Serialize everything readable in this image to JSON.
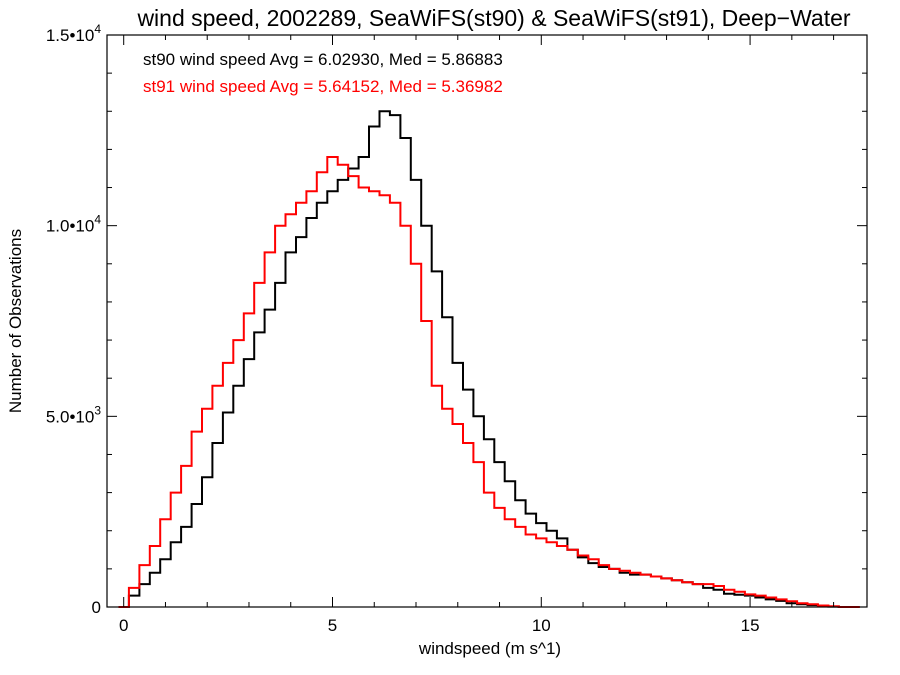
{
  "chart_data": {
    "type": "line",
    "title": "wind speed, 2002289, SeaWiFS(st90) & SeaWiFS(st91), Deep−Water",
    "xlabel": "windspeed (m s^1)",
    "ylabel": "Number of Observations",
    "xlim": [
      -0.4,
      17.8
    ],
    "ylim": [
      0,
      15000
    ],
    "x_ticks": [
      {
        "value": 0,
        "label": "0"
      },
      {
        "value": 5,
        "label": "5"
      },
      {
        "value": 10,
        "label": "10"
      },
      {
        "value": 15,
        "label": "15"
      }
    ],
    "y_ticks": [
      {
        "value": 0,
        "base": "0",
        "exp": ""
      },
      {
        "value": 5000,
        "base": "5.0•10",
        "exp": "3"
      },
      {
        "value": 10000,
        "base": "1.0•10",
        "exp": "4"
      },
      {
        "value": 15000,
        "base": "1.5•10",
        "exp": "4"
      }
    ],
    "grid": false,
    "style": "step",
    "annotations": [
      {
        "text": "st90 wind speed Avg = 6.02930, Med = 5.86883",
        "color": "#000000"
      },
      {
        "text": "st91 wind speed Avg = 5.64152, Med = 5.36982",
        "color": "#ff0000"
      }
    ],
    "series": [
      {
        "color": "#000000",
        "x": [
          0,
          0.25,
          0.5,
          0.75,
          1,
          1.25,
          1.5,
          1.75,
          2,
          2.25,
          2.5,
          2.75,
          3,
          3.25,
          3.5,
          3.75,
          4,
          4.25,
          4.5,
          4.75,
          5,
          5.25,
          5.5,
          5.75,
          6,
          6.25,
          6.5,
          6.75,
          7,
          7.25,
          7.5,
          7.75,
          8,
          8.25,
          8.5,
          8.75,
          9,
          9.25,
          9.5,
          9.75,
          10,
          10.25,
          10.5,
          10.75,
          11,
          11.25,
          11.5,
          11.75,
          12,
          12.25,
          12.5,
          12.75,
          13,
          13.25,
          13.5,
          13.75,
          14,
          14.25,
          14.5,
          14.75,
          15,
          15.25,
          15.5,
          15.75,
          16,
          16.25,
          16.5,
          16.75,
          17,
          17.25,
          17.5
        ],
        "values": [
          0,
          300,
          600,
          900,
          1250,
          1700,
          2100,
          2700,
          3400,
          4300,
          5100,
          5800,
          6500,
          7200,
          7800,
          8500,
          9300,
          9700,
          10200,
          10600,
          10900,
          11200,
          11500,
          11800,
          12600,
          13000,
          12900,
          12300,
          11200,
          10000,
          8800,
          7600,
          6400,
          5700,
          5000,
          4400,
          3800,
          3300,
          2800,
          2450,
          2200,
          2000,
          1800,
          1500,
          1300,
          1150,
          1050,
          1000,
          900,
          850,
          850,
          800,
          750,
          700,
          650,
          600,
          500,
          450,
          350,
          320,
          300,
          250,
          200,
          160,
          100,
          70,
          50,
          30,
          10,
          0,
          0
        ]
      },
      {
        "color": "#ff0000",
        "x": [
          0,
          0.25,
          0.5,
          0.75,
          1,
          1.25,
          1.5,
          1.75,
          2,
          2.25,
          2.5,
          2.75,
          3,
          3.25,
          3.5,
          3.75,
          4,
          4.25,
          4.5,
          4.75,
          5,
          5.25,
          5.5,
          5.75,
          6,
          6.25,
          6.5,
          6.75,
          7,
          7.25,
          7.5,
          7.75,
          8,
          8.25,
          8.5,
          8.75,
          9,
          9.25,
          9.5,
          9.75,
          10,
          10.25,
          10.5,
          10.75,
          11,
          11.25,
          11.5,
          11.75,
          12,
          12.25,
          12.5,
          12.75,
          13,
          13.25,
          13.5,
          13.75,
          14,
          14.25,
          14.5,
          14.75,
          15,
          15.25,
          15.5,
          15.75,
          16,
          16.25,
          16.5,
          16.75,
          17,
          17.25,
          17.5
        ],
        "values": [
          0,
          500,
          1100,
          1600,
          2300,
          3000,
          3700,
          4600,
          5200,
          5800,
          6400,
          7000,
          7700,
          8500,
          9300,
          10000,
          10300,
          10600,
          10900,
          11400,
          11800,
          11600,
          11300,
          11000,
          10900,
          10800,
          10600,
          10000,
          9000,
          7500,
          5800,
          5200,
          4800,
          4300,
          3800,
          3000,
          2600,
          2300,
          2100,
          1900,
          1800,
          1700,
          1600,
          1500,
          1350,
          1250,
          1100,
          1000,
          950,
          900,
          850,
          800,
          750,
          700,
          650,
          600,
          600,
          550,
          450,
          400,
          330,
          300,
          250,
          200,
          150,
          100,
          70,
          40,
          20,
          0,
          0
        ]
      }
    ]
  }
}
